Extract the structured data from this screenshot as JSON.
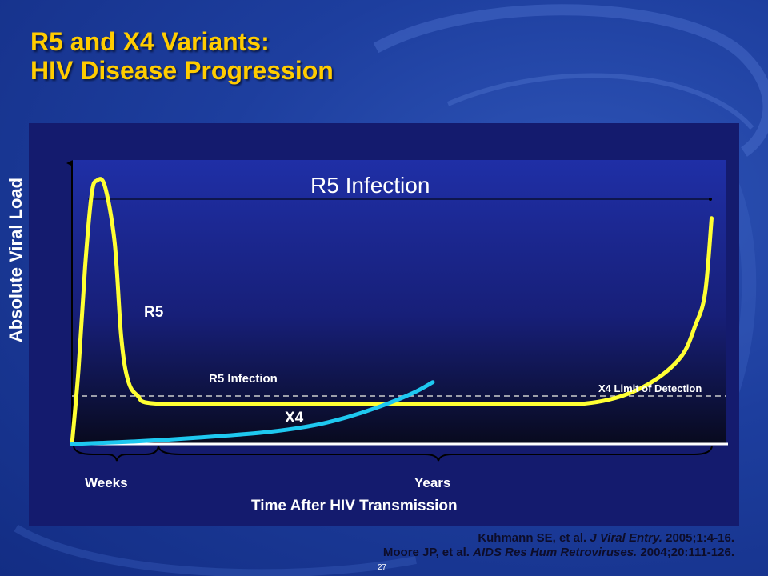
{
  "title": {
    "line1": "R5 and X4 Variants:",
    "line2": "HIV Disease Progression"
  },
  "colors": {
    "title": "#ffcc00",
    "r5_line": "#ffff33",
    "x4_line": "#1ec8f0",
    "panel": "#141b6e"
  },
  "chart_data": {
    "type": "line",
    "title": "R5 Infection",
    "xlabel": "Time After HIV Transmission",
    "ylabel": "Absolute Viral Load",
    "x_ticks": [
      "Weeks",
      "Years"
    ],
    "xlim": [
      0,
      100
    ],
    "ylim": [
      0,
      100
    ],
    "grid": false,
    "series": [
      {
        "name": "R5",
        "color": "#ffff33",
        "x": [
          0,
          1,
          2,
          3,
          3.8,
          5,
          6.5,
          7.5,
          8.5,
          10,
          13,
          30,
          50,
          70,
          78,
          84,
          89,
          93,
          95,
          96.5,
          97.5
        ],
        "y": [
          0,
          28,
          66,
          93,
          98,
          96,
          75,
          40,
          24,
          18,
          15,
          15,
          15,
          15,
          15,
          18,
          24,
          33,
          44,
          56,
          84
        ]
      },
      {
        "name": "X4",
        "color": "#1ec8f0",
        "x": [
          0,
          10,
          20,
          30,
          37,
          42,
          47,
          52,
          55
        ],
        "y": [
          0,
          1,
          2.5,
          4.5,
          7,
          10,
          14,
          19,
          23
        ]
      }
    ],
    "reference_lines": [
      {
        "label": "X4 Limit of Detection",
        "y": 23,
        "style": "dashed"
      },
      {
        "label": "",
        "y": 88,
        "style": "thin"
      }
    ],
    "annotations": {
      "r5_label": "R5",
      "x4_label": "X4",
      "r5_infection_small": "R5 Infection",
      "x4_detection": "X4 Limit of Detection"
    }
  },
  "citations": {
    "line1": {
      "authors": "Kuhmann SE, et al. ",
      "journal": "J Viral Entry.",
      "rest": " 2005;1:4-16."
    },
    "line2": {
      "authors": "Moore JP, et al. ",
      "journal": "AIDS Res Hum Retroviruses.",
      "rest": " 2004;20:111-126."
    }
  },
  "page_number": "27"
}
